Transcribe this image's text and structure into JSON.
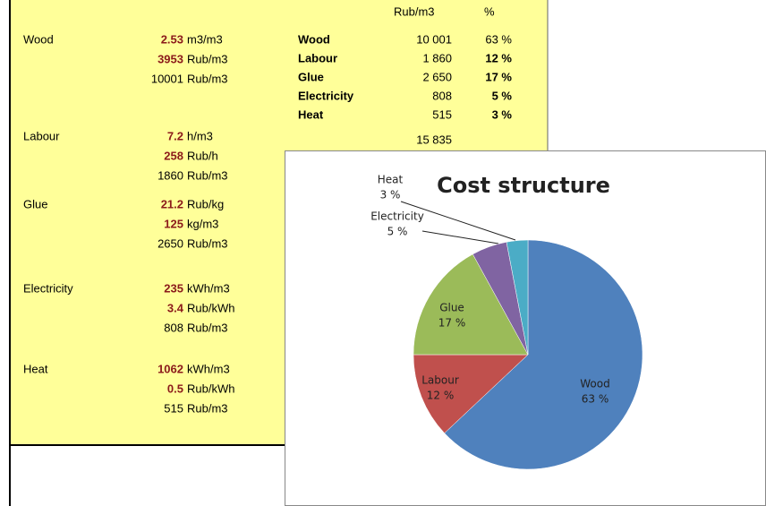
{
  "sheet": {
    "groups": [
      {
        "name": "Wood",
        "lines": [
          {
            "value": "2.53",
            "unit": "m3/m3"
          },
          {
            "value": "3953",
            "unit": "Rub/m3"
          },
          {
            "value": "10001",
            "unit": "Rub/m3"
          }
        ]
      },
      {
        "name": "Labour",
        "lines": [
          {
            "value": "7.2",
            "unit": "h/m3"
          },
          {
            "value": "258",
            "unit": "Rub/h"
          },
          {
            "value": "1860",
            "unit": "Rub/m3"
          }
        ]
      },
      {
        "name": "Glue",
        "lines": [
          {
            "value": "21.2",
            "unit": "Rub/kg"
          },
          {
            "value": "125",
            "unit": "kg/m3"
          },
          {
            "value": "2650",
            "unit": "Rub/m3"
          }
        ]
      },
      {
        "name": "Electricity",
        "lines": [
          {
            "value": "235",
            "unit": "kWh/m3"
          },
          {
            "value": "3.4",
            "unit": "Rub/kWh"
          },
          {
            "value": "808",
            "unit": "Rub/m3"
          }
        ]
      },
      {
        "name": "Heat",
        "lines": [
          {
            "value": "1062",
            "unit": "kWh/m3"
          },
          {
            "value": "0.5",
            "unit": "Rub/kWh"
          },
          {
            "value": "515",
            "unit": "Rub/m3"
          }
        ]
      }
    ],
    "summary": {
      "header": [
        "Rub/m3",
        "%"
      ],
      "rows": [
        [
          "Wood",
          "10 001",
          "63 %"
        ],
        [
          "Labour",
          "1 860",
          "12 %"
        ],
        [
          "Glue",
          "2 650",
          "17 %"
        ],
        [
          "Electricity",
          "808",
          "5 %"
        ],
        [
          "Heat",
          "515",
          "3 %"
        ]
      ],
      "total": "15 835"
    }
  },
  "chart_data": {
    "type": "pie",
    "title": "Cost structure",
    "categories": [
      "Wood",
      "Labour",
      "Glue",
      "Electricity",
      "Heat"
    ],
    "values": [
      63,
      12,
      17,
      5,
      3
    ],
    "value_labels": [
      "63 %",
      "12 %",
      "17 %",
      "5 %",
      "3 %"
    ],
    "colors": [
      "#4f81bd",
      "#c0504d",
      "#9bbb59",
      "#8064a2",
      "#4bacc6"
    ]
  }
}
